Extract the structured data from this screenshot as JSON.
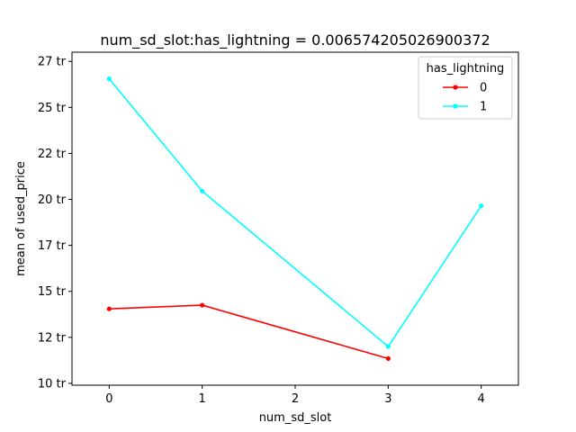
{
  "chart_data": {
    "type": "line",
    "title": "num_sd_slot:has_lightning = 0.006574205026900372",
    "xlabel": "num_sd_slot",
    "ylabel": "mean of used_price",
    "x_ticks": [
      0,
      1,
      2,
      3,
      4
    ],
    "x_tick_labels": [
      "0",
      "1",
      "2",
      "3",
      "4"
    ],
    "xlim": [
      -0.4,
      4.4
    ],
    "y_ticks": [
      10,
      12.5,
      15,
      17.5,
      20,
      22.5,
      25,
      27.5
    ],
    "y_tick_labels": [
      "10 tr",
      "12 tr",
      "15 tr",
      "17 tr",
      "20 tr",
      "22 tr",
      "25 tr",
      "27 tr"
    ],
    "ylim": [
      9.9,
      28.0
    ],
    "grid": false,
    "legend": {
      "title": "has_lightning",
      "position": "top-right"
    },
    "series": [
      {
        "name": "0",
        "color": "#ff0000",
        "x": [
          0,
          1,
          3
        ],
        "y": [
          14.05,
          14.25,
          11.35
        ]
      },
      {
        "name": "1",
        "color": "#00ffff",
        "x": [
          0,
          1,
          3,
          4
        ],
        "y": [
          26.55,
          20.45,
          12.0,
          19.65
        ]
      }
    ]
  }
}
